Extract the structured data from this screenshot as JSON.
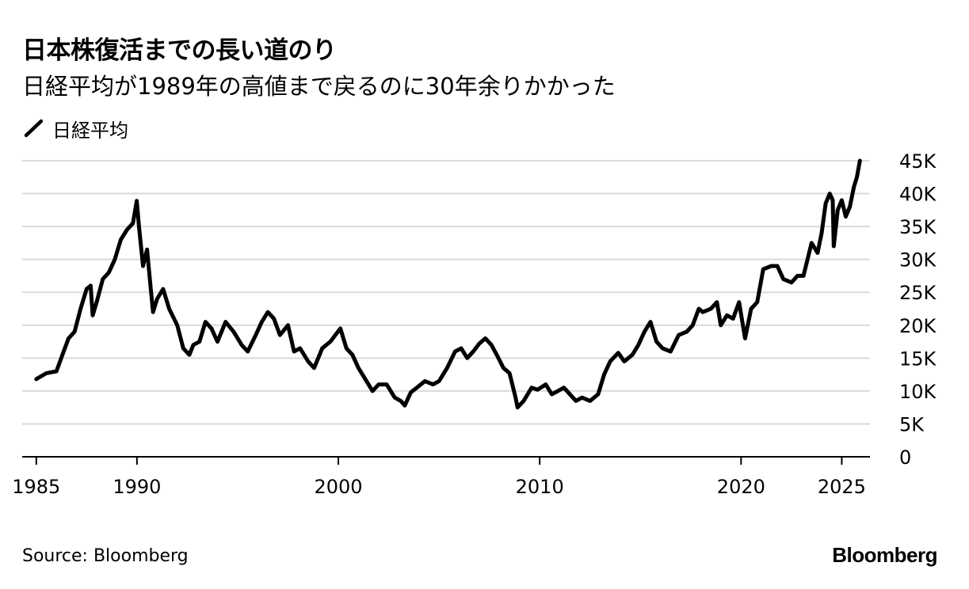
{
  "title": "日本株復活までの長い道のり",
  "subtitle": "日経平均が1989年の高値まで戻るのに30年余りかかった",
  "legend_icon": "line-swatch-icon",
  "source": "Source: Bloomberg",
  "logo": "Bloomberg",
  "colors": {
    "line": "#000000",
    "grid": "#d9d9d9",
    "axis": "#000000",
    "text": "#000000"
  },
  "chart_data": {
    "type": "line",
    "title": "日本株復活までの長い道のり",
    "subtitle": "日経平均が1989年の高値まで戻るのに30年余りかかった",
    "xlabel": "",
    "ylabel": "",
    "x_ticks": [
      "1985",
      "1990",
      "2000",
      "2010",
      "2020",
      "2025"
    ],
    "x_tick_values": [
      1985,
      1990,
      2000,
      2010,
      2020,
      2025
    ],
    "y_ticks": [
      "0",
      "5K",
      "10K",
      "15K",
      "20K",
      "25K",
      "30K",
      "35K",
      "40K",
      "45K"
    ],
    "y_tick_values": [
      0,
      5000,
      10000,
      15000,
      20000,
      25000,
      30000,
      35000,
      40000,
      45000
    ],
    "xlim": [
      1984.3,
      2026.4
    ],
    "ylim": [
      0,
      45000
    ],
    "grid": true,
    "legend_position": "top-left",
    "series": [
      {
        "name": "日経平均",
        "x": [
          1985.0,
          1985.5,
          1986.0,
          1986.3,
          1986.6,
          1986.9,
          1987.2,
          1987.5,
          1987.7,
          1987.8,
          1988.0,
          1988.3,
          1988.6,
          1988.9,
          1989.2,
          1989.5,
          1989.8,
          1989.99,
          1990.1,
          1990.3,
          1990.5,
          1990.7,
          1990.8,
          1991.0,
          1991.3,
          1991.6,
          1992.0,
          1992.3,
          1992.6,
          1992.8,
          1993.1,
          1993.4,
          1993.7,
          1994.0,
          1994.4,
          1994.8,
          1995.2,
          1995.5,
          1995.9,
          1996.2,
          1996.5,
          1996.8,
          1997.1,
          1997.5,
          1997.8,
          1998.1,
          1998.5,
          1998.8,
          1999.2,
          1999.6,
          2000.1,
          2000.4,
          2000.7,
          2001.0,
          2001.4,
          2001.7,
          2002.0,
          2002.4,
          2002.8,
          2003.1,
          2003.3,
          2003.6,
          2003.9,
          2004.3,
          2004.7,
          2005.0,
          2005.4,
          2005.8,
          2006.1,
          2006.4,
          2006.7,
          2007.0,
          2007.3,
          2007.6,
          2007.9,
          2008.2,
          2008.5,
          2008.8,
          2008.9,
          2009.2,
          2009.6,
          2009.9,
          2010.3,
          2010.6,
          2010.9,
          2011.2,
          2011.5,
          2011.8,
          2012.1,
          2012.5,
          2012.9,
          2013.2,
          2013.5,
          2013.9,
          2014.2,
          2014.6,
          2014.9,
          2015.2,
          2015.5,
          2015.8,
          2016.1,
          2016.5,
          2016.9,
          2017.3,
          2017.6,
          2017.9,
          2018.1,
          2018.5,
          2018.8,
          2018.99,
          2019.3,
          2019.6,
          2019.9,
          2020.2,
          2020.5,
          2020.8,
          2021.1,
          2021.5,
          2021.8,
          2022.1,
          2022.5,
          2022.8,
          2023.1,
          2023.5,
          2023.8,
          2024.0,
          2024.2,
          2024.4,
          2024.55,
          2024.6,
          2024.8,
          2025.0,
          2025.2,
          2025.4,
          2025.6,
          2025.75,
          2025.9
        ],
        "values": [
          11800,
          12700,
          13000,
          15500,
          18000,
          19000,
          22500,
          25500,
          26000,
          21500,
          23500,
          27000,
          28000,
          30000,
          33000,
          34500,
          35500,
          38900,
          35000,
          29000,
          31500,
          25000,
          22000,
          24000,
          25500,
          22500,
          20000,
          16500,
          15500,
          17000,
          17500,
          20500,
          19500,
          17500,
          20500,
          19000,
          17000,
          16000,
          18500,
          20500,
          22000,
          21000,
          18500,
          20000,
          16000,
          16500,
          14500,
          13500,
          16500,
          17500,
          19500,
          16500,
          15500,
          13500,
          11500,
          10000,
          11000,
          11000,
          9000,
          8500,
          7800,
          9800,
          10500,
          11500,
          11000,
          11500,
          13500,
          16000,
          16500,
          15000,
          16000,
          17200,
          18000,
          17000,
          15300,
          13500,
          12700,
          9000,
          7500,
          8500,
          10500,
          10200,
          11000,
          9500,
          10000,
          10500,
          9500,
          8500,
          9000,
          8500,
          9500,
          12500,
          14500,
          15800,
          14500,
          15500,
          17000,
          19000,
          20500,
          17500,
          16500,
          16000,
          18500,
          19000,
          20000,
          22500,
          22000,
          22500,
          23500,
          20000,
          21500,
          21000,
          23500,
          18000,
          22500,
          23500,
          28500,
          29000,
          29000,
          27000,
          26500,
          27500,
          27500,
          32500,
          31000,
          34000,
          38500,
          40000,
          39000,
          32000,
          37500,
          39000,
          36500,
          38000,
          41000,
          42500,
          45000
        ]
      }
    ]
  }
}
